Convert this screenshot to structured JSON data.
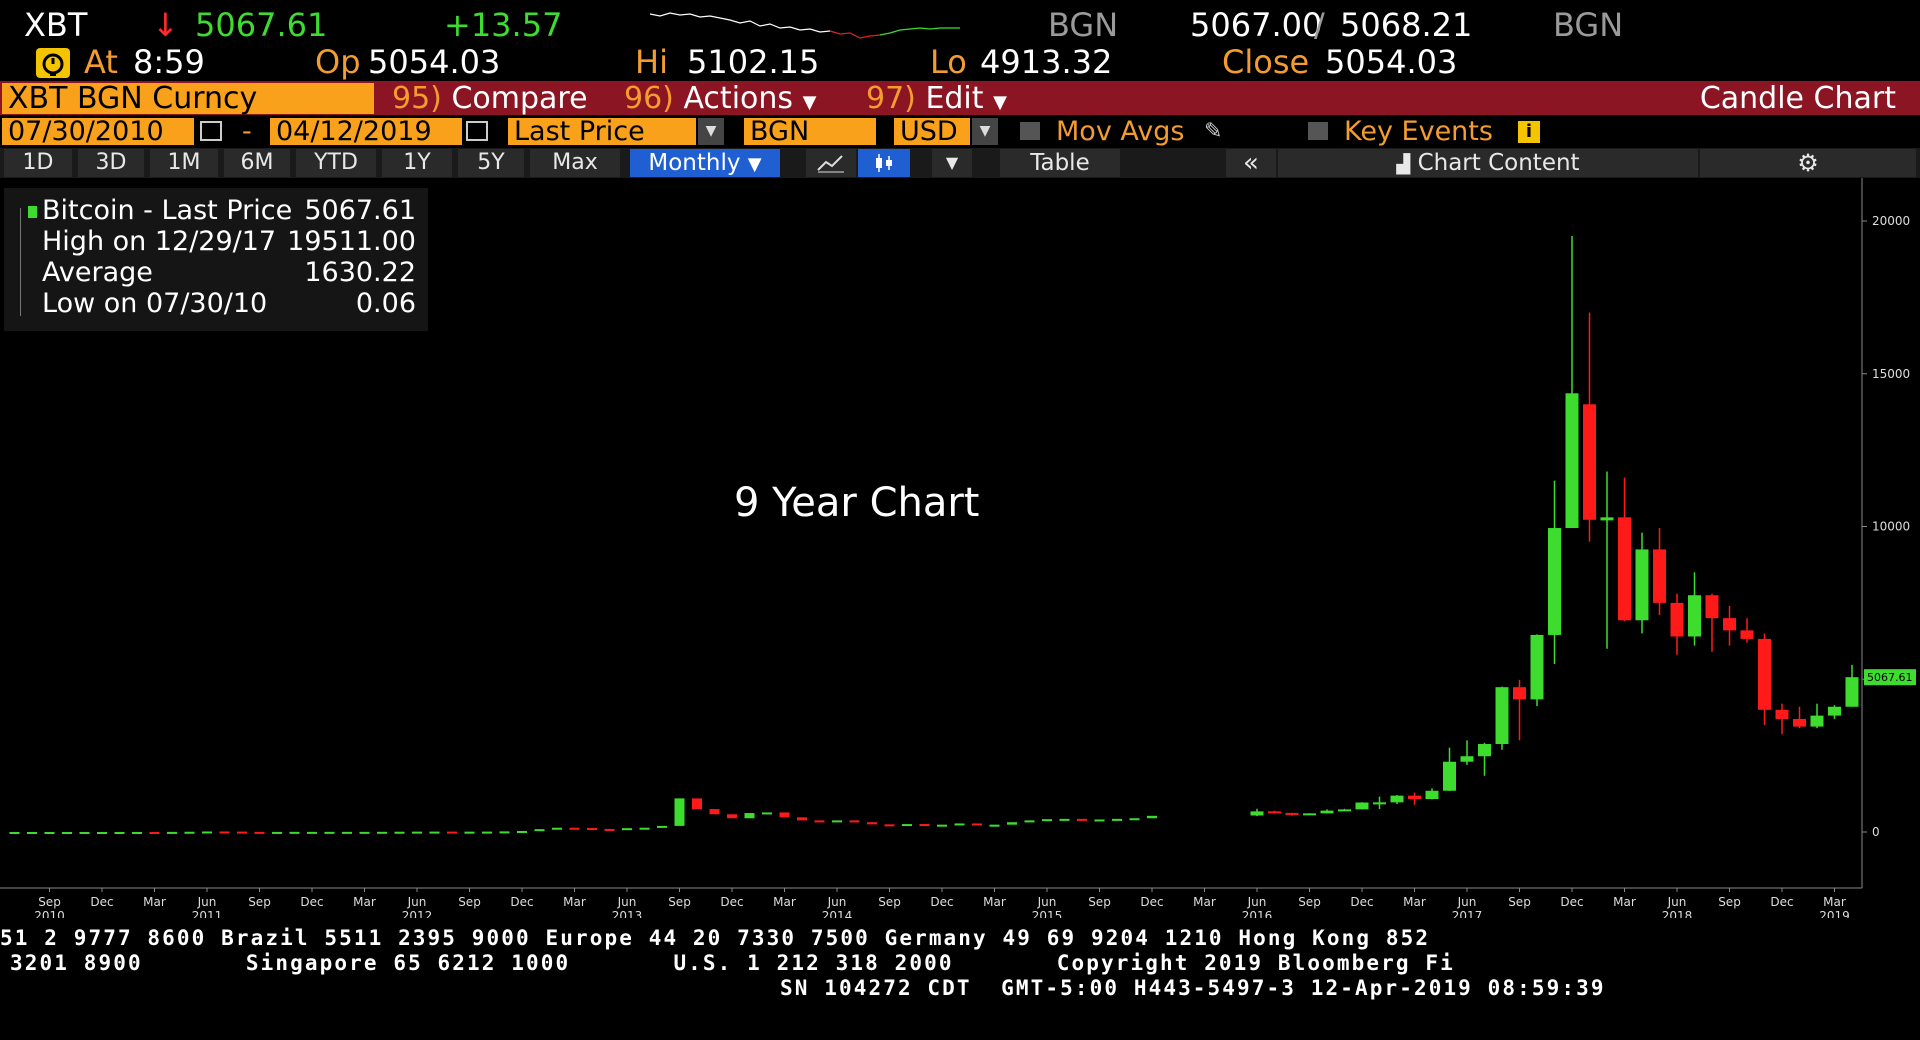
{
  "quote": {
    "ticker": "XBT",
    "arrow": "↓",
    "last": "5067.61",
    "change": "+13.57",
    "source1": "BGN",
    "bid_ask": "5067.00",
    "slash": "/",
    "ask": "5068.21",
    "source2": "BGN",
    "time_label": "At",
    "time": "8:59",
    "open_label": "Op",
    "open": "5054.03",
    "high_label": "Hi",
    "high": "5102.15",
    "low_label": "Lo",
    "low": "4913.32",
    "close_label": "Close",
    "close": "5054.03"
  },
  "toolbar": {
    "security": "XBT BGN Curncy",
    "compare_num": "95)",
    "compare": "Compare",
    "actions_num": "96)",
    "actions": "Actions",
    "edit_num": "97)",
    "edit": "Edit",
    "chart_type": "Candle Chart"
  },
  "fields": {
    "start_date": "07/30/2010",
    "dash": "-",
    "end_date": "04/12/2019",
    "price_field": "Last Price",
    "source": "BGN",
    "currency": "USD",
    "mov_avgs": "Mov Avgs",
    "key_events": "Key Events"
  },
  "periods": {
    "items": [
      "1D",
      "3D",
      "1M",
      "6M",
      "YTD",
      "1Y",
      "5Y",
      "Max"
    ],
    "frequency": "Monthly",
    "table": "Table",
    "chart_content": "Chart Content"
  },
  "legend": {
    "rows": [
      {
        "label": "Bitcoin - Last Price",
        "value": "5067.61"
      },
      {
        "label": "High on 12/29/17",
        "value": "19511.00"
      },
      {
        "label": "Average",
        "value": "1630.22"
      },
      {
        "label": "Low on 07/30/10",
        "value": "0.06"
      }
    ]
  },
  "colors": {
    "up": "#3ddc2f",
    "down": "#ff1a1a",
    "accent": "#f9a11b",
    "title_bar": "#8b1522",
    "selected": "#1f5fd1"
  },
  "chart_data": {
    "type": "candlestick",
    "annotation": "9 Year Chart",
    "last_label": "5067.61",
    "ylim": [
      -1200,
      21500
    ],
    "y_ticks": [
      0,
      5000,
      10000,
      15000,
      20000
    ],
    "y_tick_labels": [
      "0",
      "5000",
      "10000",
      "15000",
      "20000"
    ],
    "x_tick_months": [
      "Sep",
      "Dec",
      "Mar",
      "Jun",
      "Sep",
      "Dec",
      "Mar",
      "Jun",
      "Sep",
      "Dec",
      "Mar",
      "Jun",
      "Sep",
      "Dec",
      "Mar",
      "Jun",
      "Sep",
      "Dec",
      "Mar",
      "Jun",
      "Sep",
      "Dec",
      "Mar",
      "Jun",
      "Sep",
      "Dec",
      "Mar",
      "Jun",
      "Sep",
      "Dec",
      "Mar",
      "Jun",
      "Sep",
      "Dec",
      "Mar"
    ],
    "x_tick_years": [
      "2010",
      "",
      "",
      "2011",
      "",
      "",
      "",
      "2012",
      "",
      "",
      "",
      "2013",
      "",
      "",
      "",
      "2014",
      "",
      "",
      "",
      "2015",
      "",
      "",
      "",
      "2016",
      "",
      "",
      "",
      "2017",
      "",
      "",
      "",
      "2018",
      "",
      "",
      "2019"
    ],
    "candles": [
      {
        "month": "2016-06",
        "o": 540,
        "h": 760,
        "l": 520,
        "c": 675
      },
      {
        "month": "2016-07",
        "o": 675,
        "h": 700,
        "l": 610,
        "c": 625
      },
      {
        "month": "2016-08",
        "o": 625,
        "h": 630,
        "l": 530,
        "c": 575
      },
      {
        "month": "2016-09",
        "o": 575,
        "h": 615,
        "l": 570,
        "c": 610
      },
      {
        "month": "2016-10",
        "o": 610,
        "h": 740,
        "l": 605,
        "c": 700
      },
      {
        "month": "2016-11",
        "o": 700,
        "h": 760,
        "l": 690,
        "c": 740
      },
      {
        "month": "2016-12",
        "o": 740,
        "h": 975,
        "l": 735,
        "c": 965
      },
      {
        "month": "2017-01",
        "o": 965,
        "h": 1160,
        "l": 750,
        "c": 970
      },
      {
        "month": "2017-02",
        "o": 970,
        "h": 1210,
        "l": 915,
        "c": 1190
      },
      {
        "month": "2017-03",
        "o": 1190,
        "h": 1290,
        "l": 890,
        "c": 1080
      },
      {
        "month": "2017-04",
        "o": 1080,
        "h": 1430,
        "l": 1070,
        "c": 1350
      },
      {
        "month": "2017-05",
        "o": 1350,
        "h": 2760,
        "l": 1340,
        "c": 2300
      },
      {
        "month": "2017-06",
        "o": 2300,
        "h": 3000,
        "l": 2200,
        "c": 2480
      },
      {
        "month": "2017-07",
        "o": 2480,
        "h": 2920,
        "l": 1840,
        "c": 2880
      },
      {
        "month": "2017-08",
        "o": 2880,
        "h": 4760,
        "l": 2690,
        "c": 4740
      },
      {
        "month": "2017-09",
        "o": 4740,
        "h": 4980,
        "l": 3000,
        "c": 4340
      },
      {
        "month": "2017-10",
        "o": 4340,
        "h": 6470,
        "l": 4120,
        "c": 6450
      },
      {
        "month": "2017-11",
        "o": 6450,
        "h": 11500,
        "l": 5500,
        "c": 9950
      },
      {
        "month": "2017-12",
        "o": 9950,
        "h": 19511,
        "l": 9950,
        "c": 14360
      },
      {
        "month": "2018-01",
        "o": 14000,
        "h": 17000,
        "l": 9500,
        "c": 10220
      },
      {
        "month": "2018-02",
        "o": 10200,
        "h": 11800,
        "l": 6000,
        "c": 10300
      },
      {
        "month": "2018-03",
        "o": 10300,
        "h": 11600,
        "l": 6900,
        "c": 6930
      },
      {
        "month": "2018-04",
        "o": 6930,
        "h": 9800,
        "l": 6500,
        "c": 9250
      },
      {
        "month": "2018-05",
        "o": 9250,
        "h": 9950,
        "l": 7100,
        "c": 7500
      },
      {
        "month": "2018-06",
        "o": 7500,
        "h": 7800,
        "l": 5800,
        "c": 6400
      },
      {
        "month": "2018-07",
        "o": 6400,
        "h": 8500,
        "l": 6100,
        "c": 7750
      },
      {
        "month": "2018-08",
        "o": 7750,
        "h": 7800,
        "l": 5900,
        "c": 7000
      },
      {
        "month": "2018-09",
        "o": 7000,
        "h": 7400,
        "l": 6100,
        "c": 6600
      },
      {
        "month": "2018-10",
        "o": 6600,
        "h": 7000,
        "l": 6200,
        "c": 6320
      },
      {
        "month": "2018-11",
        "o": 6320,
        "h": 6500,
        "l": 3500,
        "c": 4000
      },
      {
        "month": "2018-12",
        "o": 4000,
        "h": 4200,
        "l": 3200,
        "c": 3700
      },
      {
        "month": "2019-01",
        "o": 3700,
        "h": 4100,
        "l": 3400,
        "c": 3450
      },
      {
        "month": "2019-02",
        "o": 3450,
        "h": 4200,
        "l": 3400,
        "c": 3810
      },
      {
        "month": "2019-03",
        "o": 3810,
        "h": 4150,
        "l": 3700,
        "c": 4100
      },
      {
        "month": "2019-04",
        "o": 4100,
        "h": 5470,
        "l": 4100,
        "c": 5067.61
      }
    ],
    "pre_2016_closes": [
      0.06,
      0.06,
      0.2,
      0.2,
      0.3,
      0.3,
      0.5,
      0.9,
      0.8,
      3.5,
      8,
      17,
      13,
      5,
      3,
      3,
      5,
      5,
      5,
      5,
      5,
      6.5,
      9,
      12,
      13,
      10,
      11,
      13,
      20,
      33,
      93,
      140,
      130,
      100,
      98,
      125,
      140,
      200,
      1100,
      750,
      580,
      450,
      620,
      640,
      480,
      380,
      340,
      380,
      320,
      250,
      230,
      260,
      230,
      240,
      280,
      230,
      240,
      320,
      380,
      420,
      430,
      370,
      410,
      430,
      450,
      530
    ]
  },
  "footer": {
    "line1": "51 2 9777 8600 Brazil 5511 2395 9000 Europe 44 20 7330 7500 Germany 49 69 9204 1210 Hong Kong 852",
    "line2": "3201 8900       Singapore 65 6212 1000       U.S. 1 212 318 2000       Copyright 2019 Bloomberg Fi",
    "line3": "SN 104272 CDT  GMT-5:00 H443-5497-3 12-Apr-2019 08:59:39"
  }
}
